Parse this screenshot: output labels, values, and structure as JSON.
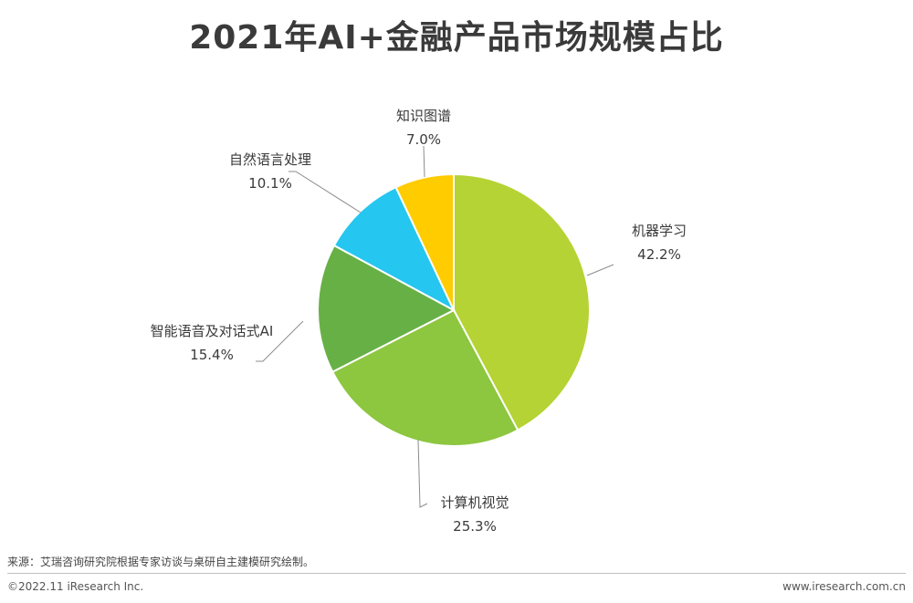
{
  "title": "2021年AI+金融产品市场规模占比",
  "chart_data": {
    "type": "pie",
    "title": "2021年AI+金融产品市场规模占比",
    "slices": [
      {
        "name": "机器学习",
        "value": 42.2,
        "label": "42.2%",
        "color": "#b5d334"
      },
      {
        "name": "计算机视觉",
        "value": 25.3,
        "label": "25.3%",
        "color": "#8dc63f"
      },
      {
        "name": "智能语音及对话式AI",
        "value": 15.4,
        "label": "15.4%",
        "color": "#67b045"
      },
      {
        "name": "自然语言处理",
        "value": 10.1,
        "label": "10.1%",
        "color": "#25c6ef"
      },
      {
        "name": "知识图谱",
        "value": 7.0,
        "label": "7.0%",
        "color": "#ffcc00"
      }
    ]
  },
  "footer": {
    "source": "来源：艾瑞咨询研究院根据专家访谈与桌研自主建模研究绘制。",
    "copyright": "©2022.11 iResearch Inc.",
    "website": "www.iresearch.com.cn"
  }
}
